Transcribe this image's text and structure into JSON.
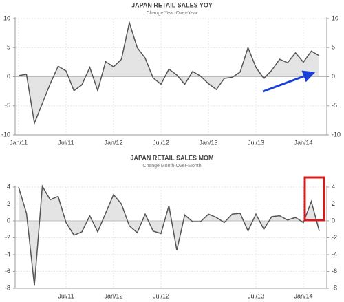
{
  "chart_data": [
    {
      "type": "line",
      "title": "JAPAN RETAIL SALES YOY",
      "subtitle": "Change Year-Over-Year",
      "categories": [
        "Jan/11",
        null,
        null,
        null,
        null,
        null,
        "Jul/11",
        null,
        null,
        null,
        null,
        null,
        "Jan/12",
        null,
        null,
        null,
        null,
        null,
        "Jul/12",
        null,
        null,
        null,
        null,
        null,
        "Jan/13",
        null,
        null,
        null,
        null,
        null,
        "Jul/13",
        null,
        null,
        null,
        null,
        null,
        "Jan/14",
        null,
        null
      ],
      "values": [
        0.2,
        0.4,
        -8.0,
        -4.6,
        -1.2,
        1.8,
        1.0,
        -2.4,
        -1.4,
        1.6,
        -2.4,
        2.6,
        1.7,
        3.0,
        9.3,
        5.0,
        3.2,
        -0.2,
        -1.3,
        1.3,
        0.3,
        -1.3,
        0.9,
        0.1,
        -1.2,
        -2.2,
        -0.3,
        -0.1,
        0.8,
        5.0,
        1.6,
        -0.3,
        1.1,
        3.0,
        2.4,
        4.1,
        2.5,
        4.4,
        3.6
      ],
      "color": "#555555",
      "fill": "#e4e4e4",
      "ylim": [
        -10,
        10
      ],
      "yticks": [
        -10,
        -5,
        0,
        5,
        10
      ],
      "grid": true
    },
    {
      "type": "line",
      "title": "JAPAN RETAIL SALES MOM",
      "subtitle": "Change Month-Over-Month",
      "categories": [
        null,
        null,
        null,
        null,
        null,
        null,
        "Jul/11",
        null,
        null,
        null,
        null,
        null,
        "Jan/12",
        null,
        null,
        null,
        null,
        null,
        "Jul/12",
        null,
        null,
        null,
        null,
        null,
        null,
        null,
        null,
        null,
        null,
        null,
        "Jul/13",
        null,
        null,
        null,
        null,
        null,
        "Jan/14",
        null,
        null
      ],
      "values": [
        4.0,
        0.9,
        -7.7,
        4.1,
        2.5,
        2.9,
        -0.2,
        -1.7,
        -1.3,
        0.6,
        -1.3,
        0.9,
        3.1,
        2.0,
        -0.6,
        -1.4,
        0.8,
        -1.2,
        -1.5,
        1.8,
        -3.5,
        0.7,
        -0.1,
        -0.1,
        0.8,
        0.4,
        -0.2,
        0.8,
        0.9,
        -1.2,
        0.8,
        -1.0,
        0.5,
        0.6,
        0.1,
        0.4,
        -0.2,
        2.3,
        -1.2
      ],
      "color": "#555555",
      "fill": "#e4e4e4",
      "ylim": [
        -8,
        4
      ],
      "yticks": [
        -8,
        -6,
        -4,
        -2,
        0,
        2,
        4
      ],
      "grid": true
    }
  ]
}
